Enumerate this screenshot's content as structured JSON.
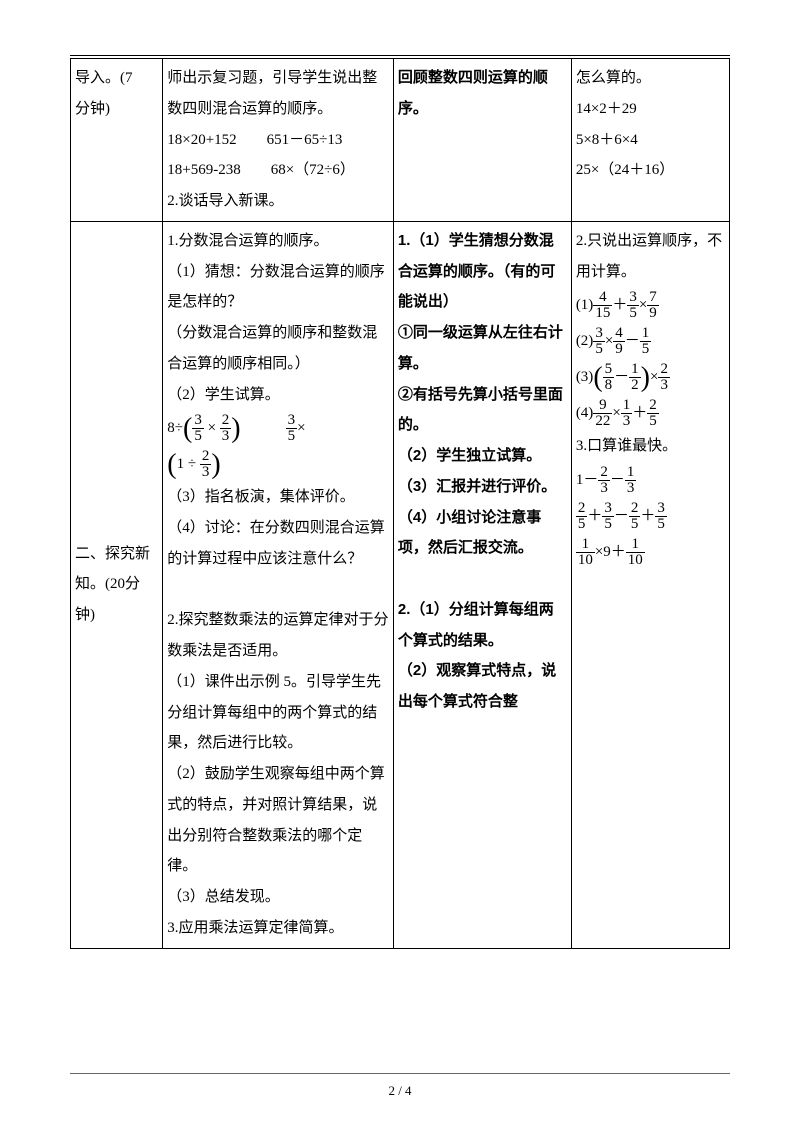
{
  "row1": {
    "col1_a": "导入。(7",
    "col1_b": "分钟)",
    "col2_a": "师出示复习题，引导学生说出整数四则混合运算的顺序。",
    "col2_b": "18×20+152",
    "col2_c": "651－65÷13",
    "col2_d": "18+569-238",
    "col2_e": "68×（72÷6）",
    "col2_f": "2.谈话导入新课。",
    "col3_a": "回顾整数四则运算的顺序。",
    "col4_a": "怎么算的。",
    "col4_b": "14×2＋29",
    "col4_c": "5×8＋6×4",
    "col4_d": "25×（24＋16）"
  },
  "row2": {
    "col1_a": "二、探究新知。(20分钟)",
    "col2": {
      "p1": "1.分数混合运算的顺序。",
      "p2": "（1）猜想：分数混合运算的顺序是怎样的？",
      "p3": "（分数混合运算的顺序和整数混合运算的顺序相同。）",
      "p4": "（2）学生试算。",
      "eq_prefix": "8÷",
      "eq_f1n": "3",
      "eq_f1d": "5",
      "eq_mid": " × ",
      "eq_f2n": "2",
      "eq_f2d": "3",
      "eq_rn": "3",
      "eq_rd": "5",
      "eq2_prefix": "1  ÷ ",
      "eq2_fn": "2",
      "eq2_fd": "3",
      "p5": "（3）指名板演，集体评价。",
      "p6": "（4）讨论：在分数四则混合运算的计算过程中应该注意什么？",
      "p7": "2.探究整数乘法的运算定律对于分数乘法是否适用。",
      "p8": "（1）课件出示例 5。引导学生先分组计算每组中的两个算式的结果，然后进行比较。",
      "p9": "（2）鼓励学生观察每组中两个算式的特点，并对照计算结果，说出分别符合整数乘法的哪个定律。",
      "p10": "（3）总结发现。",
      "p11": "3.应用乘法运算定律简算。"
    },
    "col3": {
      "b1": "1.（1）学生猜想分数混合运算的顺序。（有的可能说出）",
      "b2": "①同一级运算从左往右计算。",
      "b3": "②有括号先算小括号里面的。",
      "b4": "（2）学生独立试算。",
      "b5": "（3）汇报并进行评价。",
      "b6": "（4）小组讨论注意事项，然后汇报交流。",
      "b7": "2.（1）分组计算每组两个算式的结果。",
      "b8": "（2）观察算式特点，说出每个算式符合整"
    },
    "col4": {
      "t1": "2.只说出运算顺序，不用计算。",
      "l1": "(1)",
      "f1a_n": "4",
      "f1a_d": "15",
      "f1b_n": "3",
      "f1b_d": "5",
      "f1c_n": "7",
      "f1c_d": "9",
      "l2": "(2)",
      "f2a_n": "3",
      "f2a_d": "5",
      "f2b_n": "4",
      "f2b_d": "9",
      "f2c_n": "1",
      "f2c_d": "5",
      "l3": "(3)",
      "f3a_n": "5",
      "f3a_d": "8",
      "f3b_n": "1",
      "f3b_d": "2",
      "f3c_n": "2",
      "f3c_d": "3",
      "l4": "(4)",
      "f4a_n": "9",
      "f4a_d": "22",
      "f4b_n": "1",
      "f4b_d": "3",
      "f4c_n": "2",
      "f4c_d": "5",
      "t2": "3.口算谁最快。",
      "m1a_n": "2",
      "m1a_d": "3",
      "m1b_n": "1",
      "m1b_d": "3",
      "m2a_n": "2",
      "m2a_d": "5",
      "m2b_n": "3",
      "m2b_d": "5",
      "m2c_n": "2",
      "m2c_d": "5",
      "m2d_n": "3",
      "m2d_d": "5",
      "m3a_n": "1",
      "m3a_d": "10",
      "m3b_n": "1",
      "m3b_d": "10"
    }
  },
  "footer": {
    "page": "2 / 4"
  }
}
